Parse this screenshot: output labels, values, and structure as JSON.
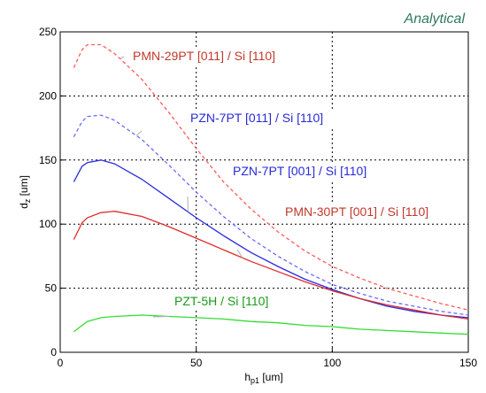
{
  "chart_data": {
    "type": "line",
    "annotation": "Analytical",
    "xlabel": "h",
    "xlabel_sub": "p1",
    "xlabel_unit": " [um]",
    "ylabel": "d",
    "ylabel_sub": "z",
    "ylabel_unit": " [um]",
    "xlim": [
      0,
      150
    ],
    "ylim": [
      0,
      250
    ],
    "xticks": [
      0,
      50,
      100,
      150
    ],
    "yticks": [
      0,
      50,
      100,
      150,
      200,
      250
    ],
    "grid": true,
    "series": [
      {
        "name": "PMN-29PT [011] / Si [110]",
        "color": "#ff5a5a",
        "dash": "dashed",
        "label_color": "#c0392b",
        "x": [
          5,
          8,
          10,
          15,
          20,
          30,
          40,
          50,
          60,
          70,
          80,
          90,
          100,
          110,
          120,
          130,
          140,
          150
        ],
        "y": [
          222,
          236,
          240,
          240,
          233,
          213,
          187,
          159,
          133,
          112,
          94,
          79,
          67,
          58,
          50,
          44,
          38,
          33
        ]
      },
      {
        "name": "PZN-7PT [011] / Si [110]",
        "color": "#6b6bff",
        "dash": "dashed",
        "label_color": "#2a2ad8",
        "x": [
          5,
          8,
          10,
          15,
          20,
          30,
          40,
          50,
          60,
          70,
          80,
          90,
          100,
          110,
          120,
          130,
          140,
          150
        ],
        "y": [
          168,
          180,
          184,
          185,
          181,
          166,
          146,
          125,
          106,
          89,
          75,
          63,
          53,
          46,
          40,
          36,
          32,
          29
        ]
      },
      {
        "name": "PZN-7PT [001] / Si [110]",
        "color": "#2a2ae0",
        "dash": "solid",
        "label_color": "#2a2ad8",
        "x": [
          5,
          8,
          10,
          15,
          20,
          30,
          40,
          50,
          60,
          70,
          80,
          90,
          100,
          110,
          120,
          130,
          140,
          150
        ],
        "y": [
          133,
          145,
          148,
          150,
          147,
          135,
          120,
          105,
          91,
          78,
          67,
          57,
          49,
          42,
          36,
          32,
          29,
          27
        ]
      },
      {
        "name": "PMN-30PT [001] / Si [110]",
        "color": "#e02a2a",
        "dash": "solid",
        "label_color": "#c0392b",
        "x": [
          5,
          8,
          10,
          15,
          20,
          30,
          40,
          50,
          60,
          70,
          80,
          90,
          100,
          110,
          120,
          130,
          140,
          150
        ],
        "y": [
          88,
          101,
          105,
          109,
          110,
          106,
          98,
          89,
          80,
          71,
          63,
          55,
          48,
          42,
          37,
          33,
          29,
          26
        ]
      },
      {
        "name": "PZT-5H / Si [110]",
        "color": "#33dd33",
        "dash": "solid",
        "label_color": "#1a9a1a",
        "x": [
          5,
          8,
          10,
          15,
          20,
          30,
          40,
          50,
          60,
          70,
          80,
          90,
          100,
          110,
          120,
          130,
          140,
          150
        ],
        "y": [
          16,
          21,
          24,
          27,
          28,
          29,
          28,
          27,
          26,
          24,
          23,
          21,
          20,
          18,
          17,
          16,
          15,
          14
        ]
      }
    ],
    "labels": [
      {
        "series": 0,
        "text": "PMN-29PT [011] / Si [110]",
        "leader_x": 22
      },
      {
        "series": 1,
        "text": "PZN-7PT [011] / Si [110]",
        "leader_x": 28
      },
      {
        "series": 2,
        "text": "PZN-7PT [001] / Si [110]",
        "leader_x": 47
      },
      {
        "series": 3,
        "text": "PMN-30PT [001] / Si [110]",
        "leader_x": 67
      },
      {
        "series": 4,
        "text": "PZT-5H / Si [110]",
        "leader_x": 40
      }
    ]
  }
}
